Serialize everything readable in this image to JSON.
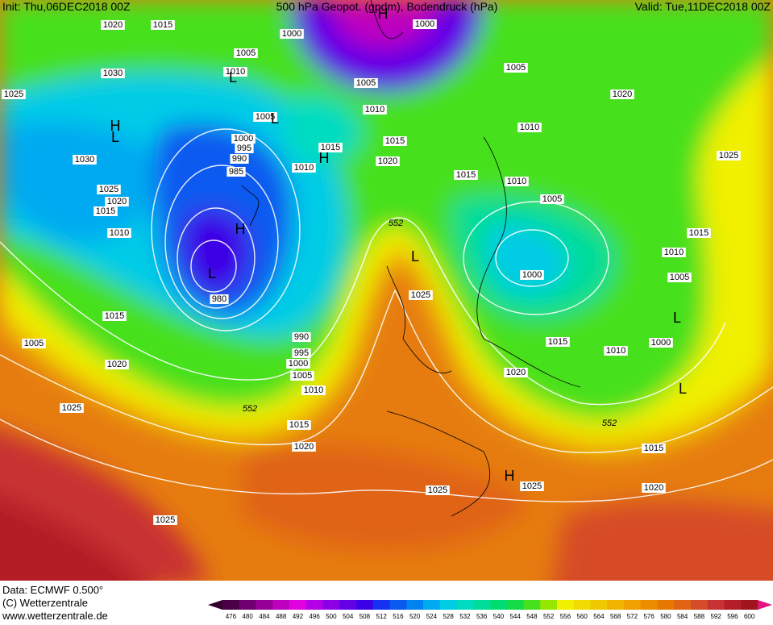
{
  "header": {
    "init": "Init: Thu,06DEC2018 00Z",
    "title": "500 hPa Geopot. (gpdm), Bodendruck (hPa)",
    "valid": "Valid: Tue,11DEC2018 00Z"
  },
  "footer": {
    "data": "Data: ECMWF  0.500°",
    "copyright": "(C) Wetterzentrale",
    "url": "www.wetterzentrale.de"
  },
  "isobar_labels": [
    "1020",
    "1015",
    "1000",
    "1000",
    "1005",
    "1010",
    "1030",
    "1025",
    "1005",
    "1005",
    "1020",
    "1010",
    "1005",
    "1010",
    "1000",
    "995",
    "990",
    "985",
    "1015",
    "1015",
    "1030",
    "1020",
    "1010",
    "1015",
    "1010",
    "1005",
    "1025",
    "1020",
    "1015",
    "1010",
    "1025",
    "1015",
    "1010",
    "1005",
    "1000",
    "980",
    "1025",
    "1015",
    "990",
    "995",
    "1000",
    "1005",
    "1010",
    "1005",
    "1020",
    "1015",
    "1010",
    "1000",
    "1020",
    "1025",
    "1015",
    "1020",
    "1015",
    "1025",
    "1025",
    "1020",
    "1025"
  ],
  "contour_labels": [
    "552",
    "552",
    "552"
  ],
  "pressure_centers": [
    "H",
    "L",
    "H",
    "L",
    "L",
    "H",
    "L",
    "L",
    "L",
    "L",
    "H",
    "H"
  ],
  "colorbar": {
    "labels": [
      "476",
      "480",
      "484",
      "488",
      "492",
      "496",
      "500",
      "504",
      "508",
      "512",
      "516",
      "520",
      "524",
      "528",
      "532",
      "536",
      "540",
      "544",
      "548",
      "552",
      "556",
      "560",
      "564",
      "568",
      "572",
      "576",
      "580",
      "584",
      "588",
      "592",
      "596",
      "600"
    ],
    "colors": [
      "#4a0046",
      "#700070",
      "#960096",
      "#be00be",
      "#e000e0",
      "#b400e6",
      "#8c00e6",
      "#6400e6",
      "#3c00e6",
      "#1432f0",
      "#0a5af0",
      "#0082f0",
      "#00aaf0",
      "#00cce6",
      "#00dcc0",
      "#00dc9a",
      "#00dc72",
      "#14dc46",
      "#46e01e",
      "#96e600",
      "#f0f000",
      "#f0dc00",
      "#f0c800",
      "#f0b400",
      "#f0a000",
      "#ec8c00",
      "#e67800",
      "#e06414",
      "#d64c28",
      "#c83232",
      "#b41e28",
      "#a0141e"
    ],
    "left_arrow_color": "#32002e",
    "right_arrow_color": "#e0147a"
  }
}
